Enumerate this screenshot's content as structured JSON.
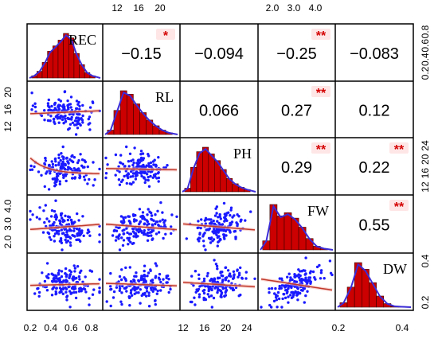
{
  "chart_data": {
    "type": "scatter",
    "variables": [
      "REC",
      "RL",
      "PH",
      "FW",
      "DW"
    ],
    "axis_ranges": {
      "REC": [
        0.2,
        0.95
      ],
      "RL": [
        8,
        24
      ],
      "PH": [
        10,
        28
      ],
      "FW": [
        1.5,
        4.8
      ],
      "DW": [
        0.05,
        0.7
      ]
    },
    "ticks": {
      "top": [
        {
          "col": 1,
          "labels": [
            "12",
            "16",
            "20"
          ]
        },
        {
          "col": 3,
          "labels": [
            "2.0",
            "3.0",
            "4.0"
          ]
        }
      ],
      "bottom": [
        {
          "col": 0,
          "labels": [
            "0.2",
            "0.4",
            "0.6",
            "0.8"
          ]
        },
        {
          "col": 2,
          "labels": [
            "12",
            "16",
            "20",
            "24"
          ]
        },
        {
          "col": 4,
          "labels": [
            "0.2",
            "0.4"
          ]
        }
      ],
      "left": [
        {
          "row": 1,
          "labels": [
            "12",
            "16",
            "20"
          ]
        },
        {
          "row": 3,
          "labels": [
            "2.0",
            "3.0",
            "4.0"
          ]
        }
      ],
      "right": [
        {
          "row": 0,
          "labels": [
            "0.2",
            "0.4",
            "0.6",
            "0.8"
          ]
        },
        {
          "row": 2,
          "labels": [
            "12",
            "16",
            "20",
            "24"
          ]
        },
        {
          "row": 4,
          "labels": [
            "0.2",
            "0.4"
          ]
        }
      ]
    },
    "correlations": [
      {
        "row": 0,
        "col": 1,
        "value": "−0.15",
        "stars": "*"
      },
      {
        "row": 0,
        "col": 2,
        "value": "−0.094",
        "stars": ""
      },
      {
        "row": 0,
        "col": 3,
        "value": "−0.25",
        "stars": "**"
      },
      {
        "row": 0,
        "col": 4,
        "value": "−0.083",
        "stars": ""
      },
      {
        "row": 1,
        "col": 2,
        "value": "0.066",
        "stars": ""
      },
      {
        "row": 1,
        "col": 3,
        "value": "0.27",
        "stars": "**"
      },
      {
        "row": 1,
        "col": 4,
        "value": "0.12",
        "stars": ""
      },
      {
        "row": 2,
        "col": 3,
        "value": "0.29",
        "stars": "**"
      },
      {
        "row": 2,
        "col": 4,
        "value": "0.22",
        "stars": "**"
      },
      {
        "row": 3,
        "col": 4,
        "value": "0.55",
        "stars": "**"
      }
    ],
    "histograms": {
      "REC": [
        0.05,
        0.15,
        0.35,
        0.6,
        0.72,
        0.85,
        1.0,
        0.9,
        0.55,
        0.3,
        0.12,
        0.05
      ],
      "RL": [
        0.1,
        0.55,
        1.0,
        0.92,
        0.7,
        0.5,
        0.33,
        0.2,
        0.1,
        0.04
      ],
      "PH": [
        0.08,
        0.55,
        0.9,
        1.0,
        0.85,
        0.7,
        0.5,
        0.3,
        0.18,
        0.1,
        0.05
      ],
      "FW": [
        0.2,
        1.0,
        0.75,
        0.82,
        0.7,
        0.5,
        0.25,
        0.08,
        0.03
      ],
      "DW": [
        0.1,
        0.45,
        1.0,
        0.85,
        0.55,
        0.25,
        0.08,
        0.02,
        0.01
      ]
    },
    "scatter_points_per_panel": 150,
    "colors": {
      "points": "#1a1aff",
      "smooth": "#c0392b",
      "bar": "#cc0000",
      "density": "#3b2bd6",
      "stars": "#d40000"
    }
  }
}
